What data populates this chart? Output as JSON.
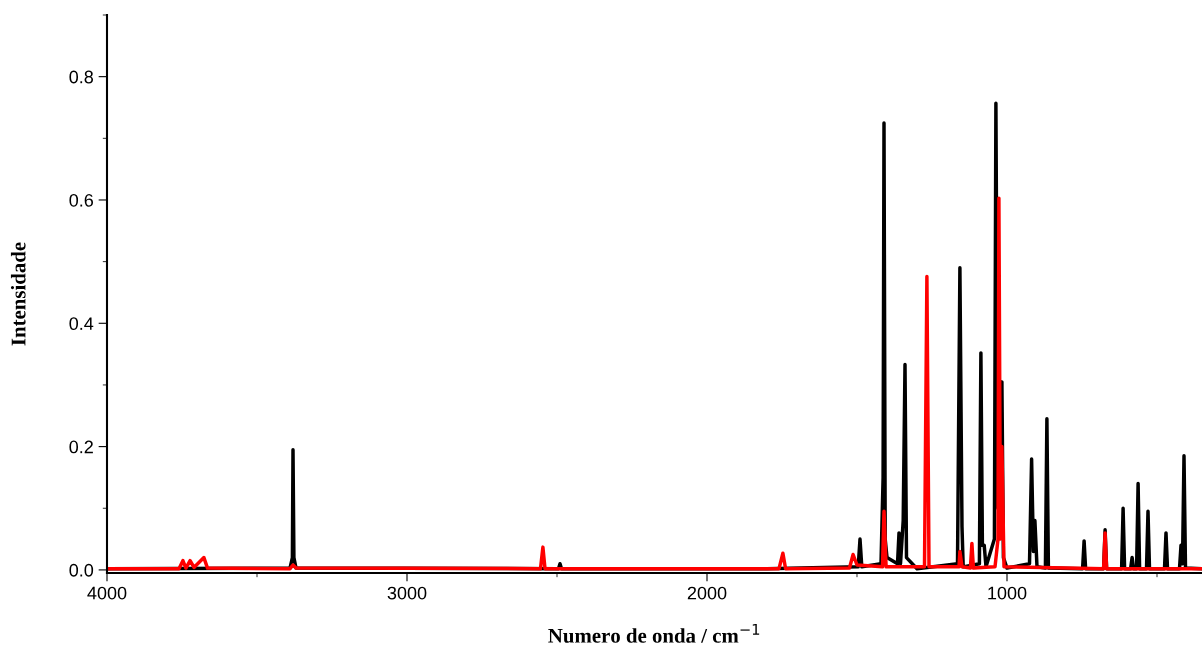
{
  "chart_data": {
    "type": "line",
    "xlabel": "Numero de onda / cm$^{−1}$",
    "ylabel": "Intensidade",
    "xlim": [
      4000,
      350
    ],
    "xticks": [
      4000,
      3000,
      2000,
      1000
    ],
    "ylim": [
      -0.005,
      0.9
    ],
    "yticks": [
      {
        "value": 0,
        "label": "0.0"
      },
      {
        "value": 0.2,
        "label": "0.2"
      },
      {
        "value": 0.4,
        "label": "0.4"
      },
      {
        "value": 0.6,
        "label": "0.6"
      },
      {
        "value": 0.8,
        "label": "0.8"
      }
    ],
    "grid": false,
    "legend": false,
    "marker": "none",
    "line_style": "solid",
    "series": [
      {
        "color": "#000000",
        "x": [
          4000,
          3390,
          3382,
          3380,
          3377,
          3370,
          2495,
          2490,
          2485,
          1800,
          1496,
          1490,
          1484,
          1420,
          1413,
          1410,
          1406,
          1400,
          1365,
          1360,
          1355,
          1346,
          1340,
          1335,
          1300,
          1165,
          1157,
          1150,
          1146,
          1092,
          1087,
          1082,
          1076,
          1070,
          1042,
          1037,
          1030,
          1017,
          1012,
          1000,
          925,
          918,
          912,
          907,
          900,
          872,
          867,
          862,
          748,
          743,
          738,
          678,
          673,
          668,
          618,
          613,
          608,
          588,
          583,
          578,
          568,
          563,
          558,
          535,
          530,
          525,
          475,
          470,
          465,
          425,
          420,
          415,
          410,
          405,
          350
        ],
        "values": [
          0.002,
          0.003,
          0.02,
          0.195,
          0.02,
          0.003,
          0.002,
          0.01,
          0.002,
          0.002,
          0.005,
          0.05,
          0.005,
          0.01,
          0.15,
          0.725,
          0.05,
          0.02,
          0.01,
          0.06,
          0.01,
          0.08,
          0.333,
          0.02,
          0.002,
          0.01,
          0.49,
          0.07,
          0.005,
          0.01,
          0.352,
          0.04,
          0.04,
          0.005,
          0.05,
          0.757,
          0.1,
          0.305,
          0.02,
          0.003,
          0.01,
          0.18,
          0.03,
          0.08,
          0.005,
          0.003,
          0.245,
          0.003,
          0.002,
          0.047,
          0.002,
          0.002,
          0.065,
          0.002,
          0.002,
          0.1,
          0.002,
          0.002,
          0.02,
          0.002,
          0.002,
          0.14,
          0.002,
          0.002,
          0.095,
          0.002,
          0.002,
          0.06,
          0.002,
          0.002,
          0.04,
          0.01,
          0.185,
          0.003,
          0.002
        ]
      },
      {
        "color": "#ff0000",
        "x": [
          4000,
          3760,
          3747,
          3737,
          3723,
          3710,
          3677,
          3665,
          3390,
          3380,
          3370,
          2555,
          2547,
          2540,
          1760,
          1747,
          1738,
          1525,
          1513,
          1500,
          1415,
          1410,
          1403,
          1275,
          1267,
          1260,
          1160,
          1157,
          1150,
          1122,
          1117,
          1112,
          1040,
          1030,
          1027,
          1022,
          1017,
          1010,
          678,
          673,
          668,
          350
        ],
        "values": [
          0.002,
          0.002,
          0.015,
          0.003,
          0.015,
          0.004,
          0.02,
          0.003,
          0.002,
          0.008,
          0.003,
          0.002,
          0.037,
          0.002,
          0.002,
          0.027,
          0.002,
          0.003,
          0.025,
          0.008,
          0.005,
          0.095,
          0.005,
          0.005,
          0.476,
          0.005,
          0.005,
          0.03,
          0.005,
          0.003,
          0.043,
          0.003,
          0.005,
          0.05,
          0.603,
          0.05,
          0.2,
          0.005,
          0.002,
          0.06,
          0.002,
          0.002
        ]
      }
    ]
  }
}
